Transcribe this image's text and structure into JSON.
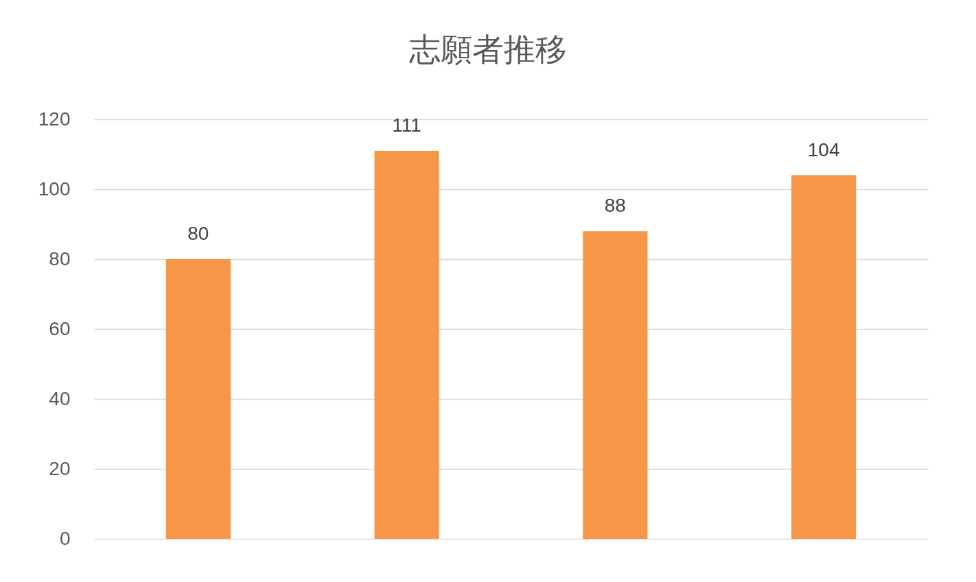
{
  "chart_data": {
    "type": "bar",
    "title": "志願者推移",
    "categories": [
      null,
      null,
      null,
      null
    ],
    "values": [
      80,
      111,
      88,
      104
    ],
    "color": "#f79646",
    "ylim": [
      0,
      120
    ],
    "yticks": [
      0,
      20,
      40,
      60,
      80,
      100,
      120
    ],
    "grid": "y",
    "data_labels": true,
    "tick_labels": "y"
  }
}
